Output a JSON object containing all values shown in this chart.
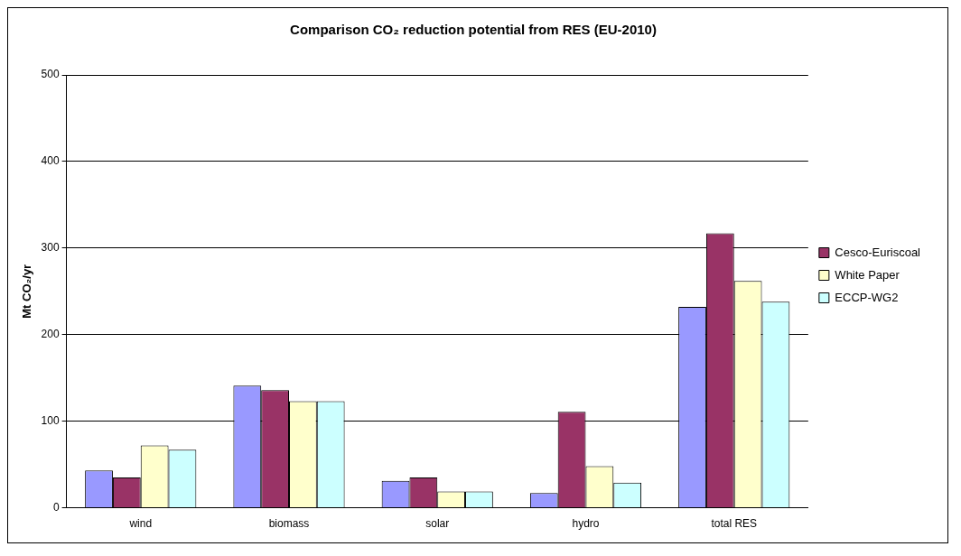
{
  "chart_data": {
    "type": "bar",
    "title": "Comparison CO₂ reduction potential from RES (EU-2010)",
    "ylabel": "Mt CO₂/yr",
    "categories": [
      "wind",
      "biomass",
      "solar",
      "hydro",
      "total RES"
    ],
    "series": [
      {
        "color": "#9999ff",
        "values": [
          43,
          141,
          31,
          17,
          232
        ]
      },
      {
        "name": "Cesco-Euriscoal",
        "color": "#993366",
        "values": [
          35,
          136,
          35,
          111,
          317
        ]
      },
      {
        "name": "White Paper",
        "color": "#ffffcc",
        "values": [
          72,
          123,
          19,
          48,
          262
        ]
      },
      {
        "name": "ECCP-WG2",
        "color": "#ccffff",
        "values": [
          67,
          123,
          19,
          29,
          238
        ]
      }
    ],
    "ylim": [
      0,
      500
    ],
    "yticks": [
      0,
      100,
      200,
      300,
      400,
      500
    ],
    "grid": "y",
    "legend": "right"
  }
}
